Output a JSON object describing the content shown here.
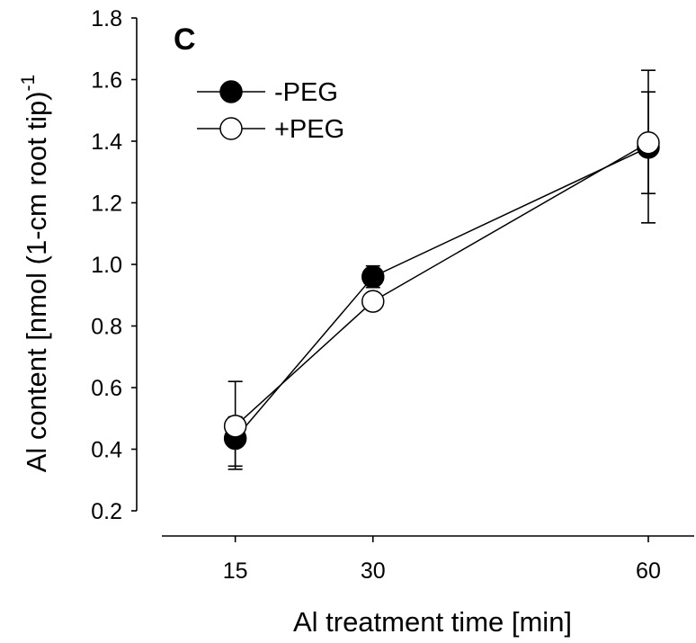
{
  "chart_data": {
    "type": "line",
    "panel_label": "C",
    "xlabel": "Al treatment time [min]",
    "ylabel": "Al content [nmol (1-cm root tip)",
    "ylabel_superscript": "-1",
    "x": [
      15,
      30,
      60
    ],
    "x_tick_labels": [
      "15",
      "30",
      "60"
    ],
    "xlim": [
      7,
      65
    ],
    "y_ticks": [
      0.2,
      0.4,
      0.6,
      0.8,
      1.0,
      1.2,
      1.4,
      1.6,
      1.8
    ],
    "y_tick_labels": [
      "0.2",
      "0.4",
      "0.6",
      "0.8",
      "1.0",
      "1.2",
      "1.4",
      "1.6",
      "1.8"
    ],
    "ylim": [
      0.2,
      1.8
    ],
    "grid": false,
    "legend_position": "top-left",
    "series": [
      {
        "name": "-PEG",
        "marker": "filled-circle",
        "color": "#000000",
        "values": [
          0.435,
          0.96,
          1.38
        ],
        "err_upper": [
          0.505,
          0.995,
          1.56
        ],
        "err_lower": [
          0.345,
          0.925,
          1.23
        ]
      },
      {
        "name": "+PEG",
        "marker": "open-circle",
        "color": "#ffffff",
        "values": [
          0.475,
          0.88,
          1.395
        ],
        "err_upper": [
          0.62,
          0.88,
          1.63
        ],
        "err_lower": [
          0.335,
          0.88,
          1.135
        ]
      }
    ]
  }
}
